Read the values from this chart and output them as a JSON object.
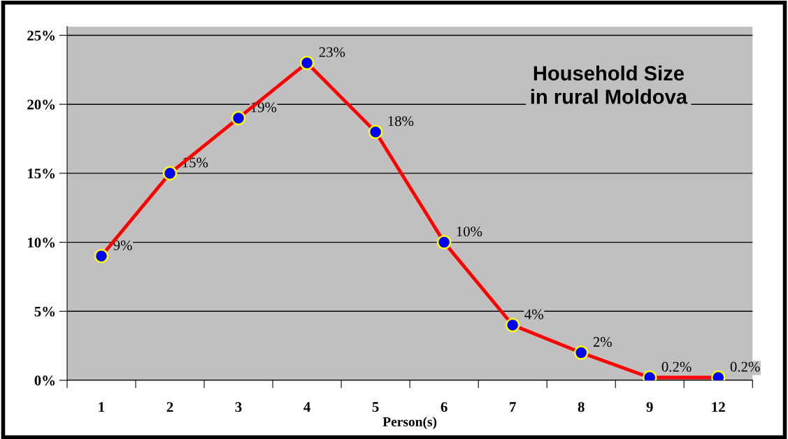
{
  "chart_data": {
    "type": "line",
    "title": "Household Size\nin rural Moldova",
    "xlabel": "Person(s)",
    "categories": [
      "1",
      "2",
      "3",
      "4",
      "5",
      "6",
      "7",
      "8",
      "9",
      "12"
    ],
    "series": [
      {
        "color": "#ff0000",
        "values": [
          9,
          15,
          19,
          23,
          18,
          10,
          4,
          2,
          0.2,
          0.2
        ],
        "value_labels": [
          "9%",
          "15%",
          "19%",
          "23%",
          "18%",
          "10%",
          "4%",
          "2%",
          "0.2%",
          "0.2%"
        ]
      }
    ],
    "ylim": [
      0,
      25
    ],
    "yticks": [
      {
        "value": 0,
        "label": "0%"
      },
      {
        "value": 5,
        "label": "5%"
      },
      {
        "value": 10,
        "label": "10%"
      },
      {
        "value": 15,
        "label": "15%"
      },
      {
        "value": 20,
        "label": "20%"
      },
      {
        "value": 25,
        "label": "25%"
      }
    ],
    "grid": "y",
    "marker": "circle",
    "line_style": "solid",
    "legend": false
  }
}
